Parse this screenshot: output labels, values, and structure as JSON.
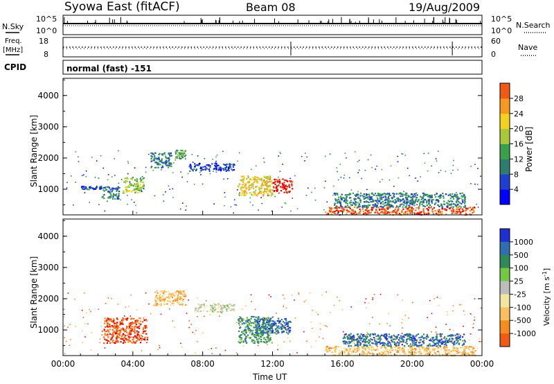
{
  "header": {
    "station": "Syowa East (fitACF)",
    "beam": "Beam 08",
    "date": "19/Aug/2009"
  },
  "strips": {
    "nsky_label": "N.Sky",
    "nsearch_label": "N.Search",
    "noise_ticks": [
      "10^5",
      "10^0"
    ],
    "noise_ticks_right": [
      "10^5",
      "10^0"
    ],
    "freq_label_1": "Freq.",
    "freq_label_2": "[MHz]",
    "freq_ticks": [
      "18",
      "8"
    ],
    "nave_label": "Nave",
    "nave_ticks": [
      "60",
      "0"
    ],
    "cpid_label": "CPID",
    "cpid_value": "normal (fast) -151"
  },
  "colors": {
    "power_scale": [
      "#0000ff",
      "#1f3fd0",
      "#2e7d6f",
      "#3aa04a",
      "#a7c83a",
      "#f2d21f",
      "#f59a1f",
      "#f15a14",
      "#e60000"
    ],
    "velocity_scale": [
      "#e60000",
      "#f15a14",
      "#f58c1f",
      "#f8c060",
      "#f0e6a0",
      "#bdbdbd",
      "#73c844",
      "#2e8b57",
      "#2f6fb0",
      "#1f2fd0"
    ],
    "ground_scatter": "#bdbdbd"
  },
  "chart_data": [
    {
      "type": "heatmap",
      "panel": "power",
      "ylabel": "Slant Range [km]",
      "yticks": [
        "1000",
        "2000",
        "3000",
        "4000"
      ],
      "ylim": [
        180,
        4550
      ],
      "xlim": [
        0,
        24
      ],
      "colorbar_label": "Power [dB]",
      "colorbar_ticks": [
        "4",
        "8",
        "12",
        "16",
        "20",
        "24",
        "28"
      ],
      "regions": [
        {
          "t0": 1.0,
          "t1": 2.2,
          "r0": 1020,
          "r1": 1120,
          "level": 1
        },
        {
          "t0": 2.2,
          "t1": 3.2,
          "r0": 700,
          "r1": 1100,
          "level": 2
        },
        {
          "t0": 3.4,
          "t1": 4.6,
          "r0": 900,
          "r1": 1400,
          "level": 4
        },
        {
          "t0": 5.0,
          "t1": 6.2,
          "r0": 1700,
          "r1": 2200,
          "level": 2
        },
        {
          "t0": 6.4,
          "t1": 7.0,
          "r0": 2000,
          "r1": 2280,
          "level": 3
        },
        {
          "t0": 7.2,
          "t1": 9.8,
          "r0": 1600,
          "r1": 1850,
          "level": 1
        },
        {
          "t0": 10.0,
          "t1": 12.0,
          "r0": 800,
          "r1": 1450,
          "level": 5
        },
        {
          "t0": 12.0,
          "t1": 13.1,
          "r0": 900,
          "r1": 1350,
          "level": 8
        },
        {
          "t0": 15.0,
          "t1": 23.6,
          "r0": 200,
          "r1": 450,
          "level": 7
        },
        {
          "t0": 15.5,
          "t1": 23.0,
          "r0": 450,
          "r1": 900,
          "level": 2
        }
      ]
    },
    {
      "type": "heatmap",
      "panel": "velocity",
      "ylabel": "Slant Range [km]",
      "yticks": [
        "1000",
        "2000",
        "3000",
        "4000"
      ],
      "ylim": [
        180,
        4550
      ],
      "xlim": [
        0,
        24
      ],
      "xlabel": "Time UT",
      "xticks": [
        "00:00",
        "04:00",
        "08:00",
        "12:00",
        "16:00",
        "20:00",
        "00:00"
      ],
      "colorbar_label": "Velocity [m s",
      "colorbar_label_sup": "-1",
      "colorbar_label_close": "]",
      "colorbar_ticks": [
        "1000",
        "500",
        "100",
        "25",
        "-25",
        "-100",
        "-500",
        "-1000"
      ],
      "regions": [
        {
          "t0": 2.3,
          "t1": 4.8,
          "r0": 600,
          "r1": 1400,
          "level": 1
        },
        {
          "t0": 5.2,
          "t1": 7.0,
          "r0": 1800,
          "r1": 2280,
          "level": 3
        },
        {
          "t0": 7.5,
          "t1": 9.8,
          "r0": 1600,
          "r1": 1850,
          "level": 5
        },
        {
          "t0": 10.0,
          "t1": 12.0,
          "r0": 600,
          "r1": 1450,
          "level": 7
        },
        {
          "t0": 11.0,
          "t1": 13.0,
          "r0": 900,
          "r1": 1400,
          "level": 8
        },
        {
          "t0": 15.0,
          "t1": 23.6,
          "r0": 200,
          "r1": 500,
          "level": 3
        },
        {
          "t0": 16.0,
          "t1": 23.0,
          "r0": 500,
          "r1": 900,
          "level": 8
        }
      ]
    }
  ]
}
